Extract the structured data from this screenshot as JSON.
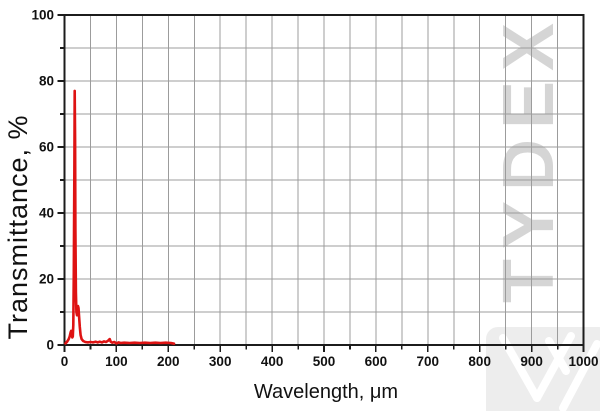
{
  "figure": {
    "background": "#ffffff",
    "watermark_text": "TYDEX",
    "colors": {
      "curve": "#de1313",
      "grid": "#9c9c9c",
      "axis": "#1c1c1c",
      "tick_label": "#111111",
      "watermark": "#d5d5d5",
      "logo_bg": "#ededed",
      "logo_stroke": "#ffffff"
    }
  },
  "chart_data": {
    "type": "line",
    "title": "",
    "xlabel": "Wavelength, μm",
    "ylabel": "Transmittance, %",
    "xlim": [
      0,
      1000
    ],
    "ylim": [
      0,
      100
    ],
    "x_major_ticks": [
      0,
      100,
      200,
      300,
      400,
      500,
      600,
      700,
      800,
      900,
      1000
    ],
    "x_minor_step": 50,
    "y_major_ticks": [
      0,
      20,
      40,
      60,
      80,
      100
    ],
    "y_minor_step": 10,
    "grid": true,
    "legend_position": "none",
    "series": [
      {
        "name": "transmittance",
        "color": "#de1313",
        "points": [
          [
            2,
            0.5
          ],
          [
            5,
            1
          ],
          [
            8,
            1.8
          ],
          [
            10,
            2.6
          ],
          [
            12,
            3.9
          ],
          [
            13,
            4.3
          ],
          [
            14,
            3.4
          ],
          [
            15,
            2.3
          ],
          [
            16,
            2.6
          ],
          [
            17,
            6
          ],
          [
            18,
            22
          ],
          [
            19,
            55
          ],
          [
            19.7,
            77
          ],
          [
            20.4,
            62
          ],
          [
            21,
            35
          ],
          [
            22,
            16
          ],
          [
            23,
            10
          ],
          [
            24,
            9
          ],
          [
            25,
            10
          ],
          [
            26,
            11.8
          ],
          [
            27,
            11.2
          ],
          [
            28,
            9
          ],
          [
            29.5,
            5.5
          ],
          [
            31,
            3
          ],
          [
            33,
            1.8
          ],
          [
            36,
            1.2
          ],
          [
            40,
            0.9
          ],
          [
            45,
            0.8
          ],
          [
            50,
            0.9
          ],
          [
            55,
            0.8
          ],
          [
            60,
            1
          ],
          [
            64,
            0.8
          ],
          [
            68,
            1
          ],
          [
            72,
            0.8
          ],
          [
            76,
            1.1
          ],
          [
            80,
            0.9
          ],
          [
            84,
            1.3
          ],
          [
            87,
            1.8
          ],
          [
            89,
            1
          ],
          [
            92,
            0.7
          ],
          [
            96,
            0.9
          ],
          [
            100,
            0.5
          ],
          [
            104,
            0.8
          ],
          [
            108,
            0.6
          ],
          [
            115,
            0.7
          ],
          [
            125,
            0.6
          ],
          [
            135,
            0.7
          ],
          [
            145,
            0.6
          ],
          [
            155,
            0.7
          ],
          [
            165,
            0.6
          ],
          [
            175,
            0.7
          ],
          [
            185,
            0.6
          ],
          [
            195,
            0.7
          ],
          [
            205,
            0.6
          ],
          [
            211,
            0.4
          ]
        ]
      }
    ]
  }
}
